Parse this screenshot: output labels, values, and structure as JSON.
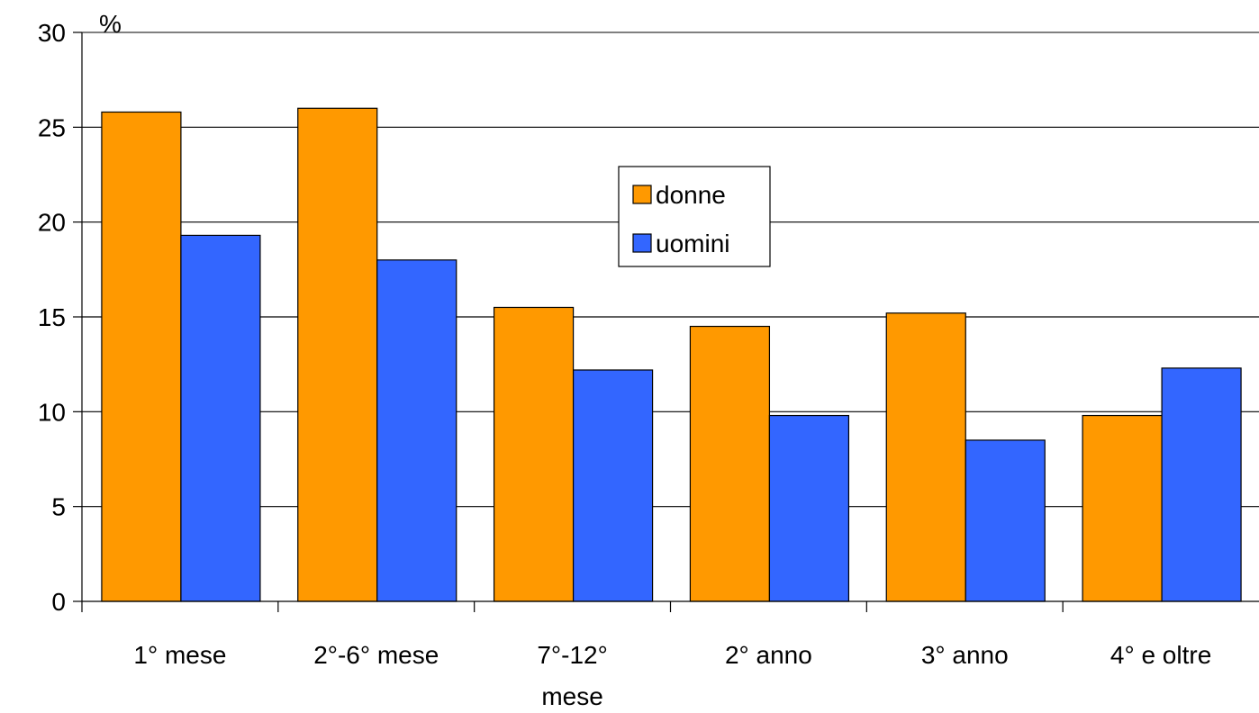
{
  "chart_data": {
    "type": "bar",
    "title": "",
    "xlabel": "",
    "ylabel": "%",
    "ylim": [
      0,
      30
    ],
    "yticks": [
      0,
      5,
      10,
      15,
      20,
      25,
      30
    ],
    "grid": true,
    "legend_position": "center",
    "categories": [
      [
        "1° mese"
      ],
      [
        "2°-6° mese"
      ],
      [
        "7°-12°",
        "mese"
      ],
      [
        "2° anno"
      ],
      [
        "3° anno"
      ],
      [
        "4° e oltre"
      ]
    ],
    "series": [
      {
        "name": "donne",
        "color": "#FF9900",
        "values": [
          25.8,
          26.0,
          15.5,
          14.5,
          15.2,
          9.8
        ]
      },
      {
        "name": "uomini",
        "color": "#3366FF",
        "values": [
          19.3,
          18.0,
          12.2,
          9.8,
          8.5,
          12.3
        ]
      }
    ]
  }
}
